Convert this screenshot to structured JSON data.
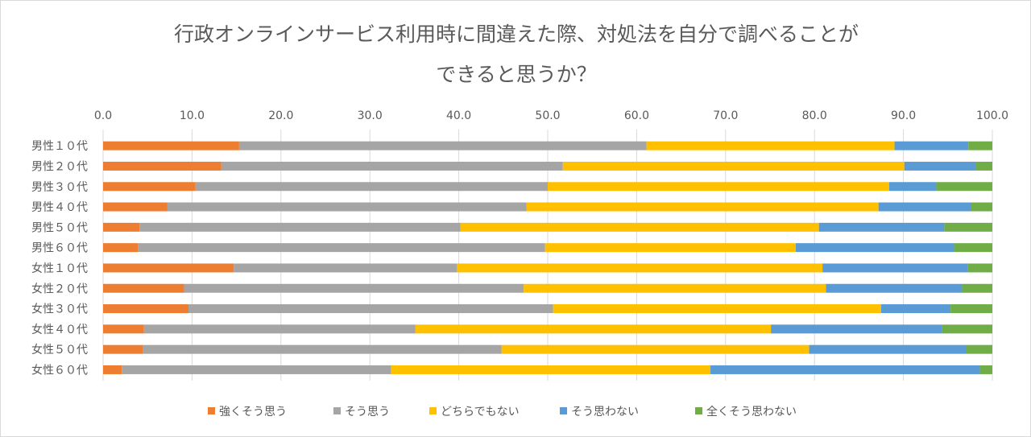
{
  "chart_data": {
    "type": "bar",
    "orientation": "horizontal",
    "stacked": true,
    "title": [
      "行政オンラインサービス利用時に間違えた際、対処法を自分で調べることが",
      "できると思うか？"
    ],
    "xlabel": "",
    "ylabel": "",
    "xlim": [
      0,
      100
    ],
    "xticks": [
      "0.0",
      "10.0",
      "20.0",
      "30.0",
      "40.0",
      "50.0",
      "60.0",
      "70.0",
      "80.0",
      "90.0",
      "100.0"
    ],
    "x_axis_position": "top",
    "grid": true,
    "legend_position": "bottom",
    "categories": [
      "男性１０代",
      "男性２０代",
      "男性３０代",
      "男性４０代",
      "男性５０代",
      "男性６０代",
      "女性１０代",
      "女性２０代",
      "女性３０代",
      "女性４０代",
      "女性５０代",
      "女性６０代"
    ],
    "series": [
      {
        "name": "強くそう思う",
        "color": "#ED7D31",
        "values": [
          15.3,
          13.3,
          10.4,
          7.2,
          4.1,
          3.9,
          14.7,
          9.1,
          9.6,
          4.6,
          4.5,
          2.1
        ]
      },
      {
        "name": "そう思う",
        "color": "#A5A5A5",
        "values": [
          45.8,
          38.4,
          39.6,
          40.4,
          36.1,
          45.8,
          25.1,
          38.2,
          41.0,
          30.5,
          40.3,
          30.3
        ]
      },
      {
        "name": "どちらでもない",
        "color": "#FFC000",
        "values": [
          27.9,
          38.4,
          38.4,
          39.6,
          40.3,
          28.2,
          41.1,
          34.0,
          36.9,
          40.0,
          34.6,
          35.9
        ]
      },
      {
        "name": "そう思わない",
        "color": "#5B9BD5",
        "values": [
          8.3,
          8.0,
          5.3,
          10.4,
          14.1,
          17.8,
          16.3,
          15.3,
          7.8,
          19.2,
          17.7,
          30.3
        ]
      },
      {
        "name": "全くそう思わない",
        "color": "#70AD47",
        "values": [
          2.7,
          1.9,
          6.3,
          2.4,
          5.4,
          4.3,
          2.8,
          3.4,
          4.7,
          5.7,
          2.9,
          1.4
        ]
      }
    ]
  }
}
